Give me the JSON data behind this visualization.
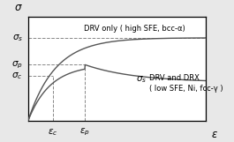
{
  "background_color": "#e8e8e8",
  "box_color": "white",
  "curve_color": "#555555",
  "dashed_color": "#888888",
  "drv_label": "DRV only ( high SFE, bcc-α)",
  "drx_label_1": "DRV and DRX",
  "drx_label_2": "( low SFE, Ni, fcc-γ )",
  "sigma_s": 0.8,
  "sigma_p": 0.54,
  "sigma_c": 0.43,
  "eps_c": 0.14,
  "eps_p": 0.32,
  "sigma_drx_ss": 0.37,
  "xlim": [
    0,
    1.0
  ],
  "ylim": [
    0,
    1.0
  ],
  "label_fontsize": 6.0,
  "greek_fontsize": 7.5
}
